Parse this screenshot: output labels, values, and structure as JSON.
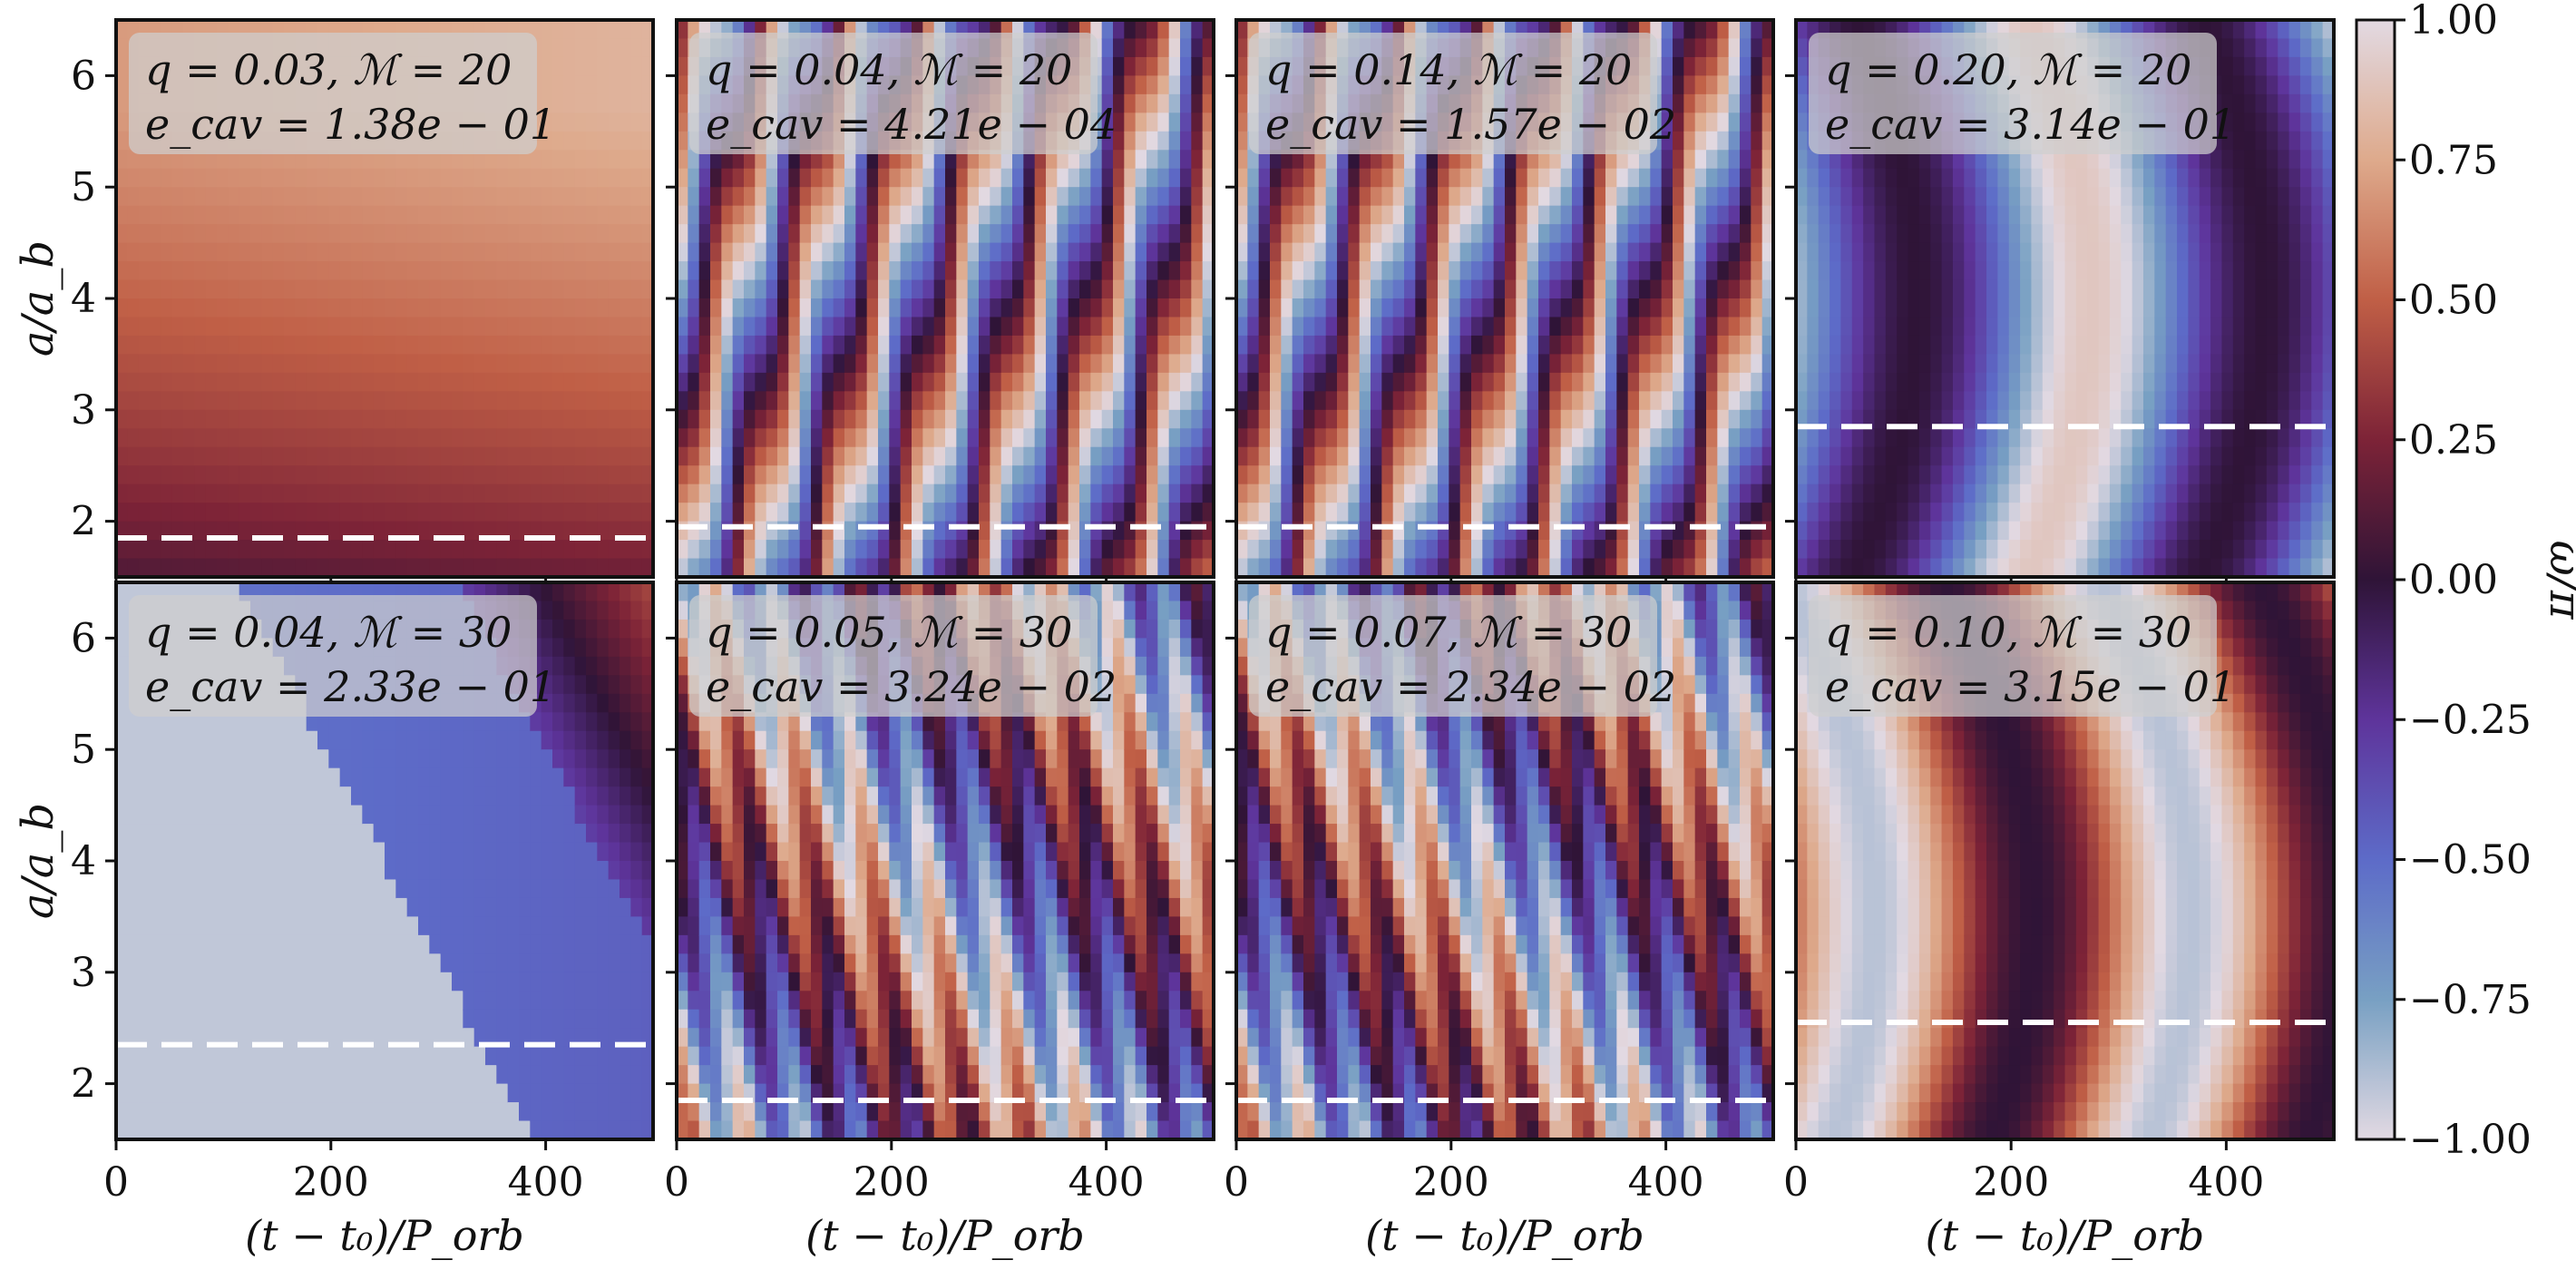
{
  "chart_data": {
    "type": "heatmap",
    "colormap": "twilight",
    "colorbar": {
      "label": "ω/π",
      "range": [
        -1.0,
        1.0
      ],
      "ticks": [
        "1.00",
        "0.75",
        "0.50",
        "0.25",
        "0.00",
        "−0.25",
        "−0.50",
        "−0.75",
        "−1.00"
      ],
      "tick_values": [
        1.0,
        0.75,
        0.5,
        0.25,
        0.0,
        -0.25,
        -0.5,
        -0.75,
        -1.0
      ]
    },
    "xlabel": "(t − t₀)/P_orb",
    "ylabel": "a/a_b",
    "xlim": [
      0,
      500
    ],
    "ylim": [
      1.5,
      6.5
    ],
    "xticks": [
      "0",
      "200",
      "400"
    ],
    "xtick_values": [
      0,
      200,
      400
    ],
    "yticks": [
      "2",
      "3",
      "4",
      "5",
      "6"
    ],
    "ytick_values": [
      2,
      3,
      4,
      5,
      6
    ],
    "panels": [
      {
        "q_label": "q = 0.03, ℳ = 20",
        "e_label": "e_cav = 1.38e − 01",
        "e_cav": 0.138,
        "cavity_a": 1.85,
        "pattern": "smooth"
      },
      {
        "q_label": "q = 0.04, ℳ = 20",
        "e_label": "e_cav = 4.21e − 04",
        "e_cav": 0.000421,
        "cavity_a": 1.95,
        "pattern": "stripes"
      },
      {
        "q_label": "q = 0.14, ℳ = 20",
        "e_label": "e_cav = 1.57e − 02",
        "e_cav": 0.0157,
        "cavity_a": 1.95,
        "pattern": "stripes"
      },
      {
        "q_label": "q = 0.20, ℳ = 20",
        "e_label": "e_cav = 3.14e − 01",
        "e_cav": 0.314,
        "cavity_a": 2.85,
        "pattern": "waves"
      },
      {
        "q_label": "q = 0.04, ℳ = 30",
        "e_label": "e_cav = 2.33e − 01",
        "e_cav": 0.233,
        "cavity_a": 2.35,
        "pattern": "domain"
      },
      {
        "q_label": "q = 0.05, ℳ = 30",
        "e_label": "e_cav = 3.24e − 02",
        "e_cav": 0.0324,
        "cavity_a": 1.85,
        "pattern": "zigzag"
      },
      {
        "q_label": "q = 0.07, ℳ = 30",
        "e_label": "e_cav = 2.34e − 02",
        "e_cav": 0.0234,
        "cavity_a": 1.85,
        "pattern": "zigzag"
      },
      {
        "q_label": "q = 0.10, ℳ = 30",
        "e_label": "e_cav = 3.15e − 01",
        "e_cav": 0.315,
        "cavity_a": 2.55,
        "pattern": "waves2"
      }
    ]
  }
}
